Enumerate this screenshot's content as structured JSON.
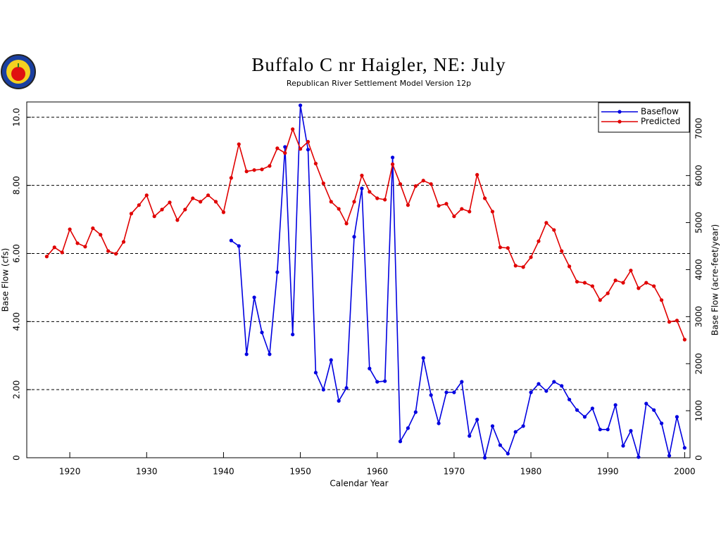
{
  "chart_data": {
    "type": "line",
    "title": "Buffalo C nr Haigler, NE: July",
    "subtitle": "Republican River Settlement Model Version 12p",
    "xlabel": "Calendar Year",
    "ylabel": "Base Flow (cfs)",
    "y2label": "Base Flow (acre-feet/year)",
    "xlim": [
      1914.4,
      2000.7
    ],
    "xticks": [
      1920,
      1930,
      1940,
      1950,
      1960,
      1970,
      1980,
      1990,
      2000
    ],
    "ylim": [
      0,
      10.45
    ],
    "yticks": [
      0,
      {
        "value": 2,
        "label": "2.00"
      },
      {
        "value": 4,
        "label": "4.00"
      },
      {
        "value": 6,
        "label": "6.00"
      },
      {
        "value": 8,
        "label": "8.00"
      },
      {
        "value": 10,
        "label": "10.0"
      }
    ],
    "y2lim": [
      0,
      7565
    ],
    "y2ticks": [
      0,
      1000,
      2000,
      3000,
      4000,
      5000,
      6000,
      7000
    ],
    "grid": true,
    "legend": "upper right",
    "x": [
      1917,
      1918,
      1919,
      1920,
      1921,
      1922,
      1923,
      1924,
      1925,
      1926,
      1927,
      1928,
      1929,
      1930,
      1931,
      1932,
      1933,
      1934,
      1935,
      1936,
      1937,
      1938,
      1939,
      1940,
      1941,
      1942,
      1943,
      1944,
      1945,
      1946,
      1947,
      1948,
      1949,
      1950,
      1951,
      1952,
      1953,
      1954,
      1955,
      1956,
      1957,
      1958,
      1959,
      1960,
      1961,
      1962,
      1963,
      1964,
      1965,
      1966,
      1967,
      1968,
      1969,
      1970,
      1971,
      1972,
      1973,
      1974,
      1975,
      1976,
      1977,
      1978,
      1979,
      1980,
      1981,
      1982,
      1983,
      1984,
      1985,
      1986,
      1987,
      1988,
      1989,
      1990,
      1991,
      1992,
      1993,
      1994,
      1995,
      1996,
      1997,
      1998,
      1999,
      2000
    ],
    "series": [
      {
        "name": "Baseflow",
        "color": "#0000e0",
        "values": [
          null,
          null,
          null,
          null,
          null,
          null,
          null,
          null,
          null,
          null,
          null,
          null,
          null,
          null,
          null,
          null,
          null,
          null,
          null,
          null,
          null,
          null,
          null,
          null,
          6.38,
          6.22,
          3.04,
          4.71,
          3.68,
          3.04,
          5.45,
          9.13,
          3.62,
          10.35,
          9.05,
          2.5,
          2.0,
          2.87,
          1.67,
          2.05,
          6.49,
          7.91,
          2.62,
          2.23,
          2.25,
          8.82,
          0.48,
          0.87,
          1.34,
          2.93,
          1.84,
          1.01,
          1.92,
          1.92,
          2.23,
          0.64,
          1.12,
          0,
          0.93,
          0.37,
          0.12,
          0.76,
          0.93,
          1.92,
          2.17,
          1.96,
          2.23,
          2.11,
          1.71,
          1.4,
          1.2,
          1.45,
          0.83,
          0.83,
          1.55,
          0.35,
          0.79,
          0.02,
          1.59,
          1.4,
          1.01,
          0.06,
          1.2,
          0.29
        ]
      },
      {
        "name": "Predicted",
        "color": "#e00000",
        "values": [
          5.91,
          6.18,
          6.03,
          6.71,
          6.3,
          6.2,
          6.74,
          6.55,
          6.07,
          5.99,
          6.34,
          7.17,
          7.42,
          7.71,
          7.09,
          7.29,
          7.5,
          6.98,
          7.29,
          7.62,
          7.52,
          7.71,
          7.52,
          7.21,
          8.22,
          9.21,
          8.41,
          8.45,
          8.47,
          8.57,
          9.09,
          8.95,
          9.65,
          9.07,
          9.28,
          8.64,
          8.06,
          7.52,
          7.31,
          6.88,
          7.52,
          8.29,
          7.81,
          7.62,
          7.58,
          8.62,
          8.04,
          7.42,
          7.98,
          8.14,
          8.04,
          7.4,
          7.46,
          7.09,
          7.31,
          7.23,
          8.31,
          7.62,
          7.23,
          6.18,
          6.16,
          5.64,
          5.6,
          5.89,
          6.36,
          6.9,
          6.69,
          6.07,
          5.62,
          5.17,
          5.14,
          5.04,
          4.63,
          4.83,
          5.21,
          5.14,
          5.5,
          4.98,
          5.14,
          5.04,
          4.63,
          3.99,
          4.03,
          3.47
        ]
      }
    ]
  }
}
